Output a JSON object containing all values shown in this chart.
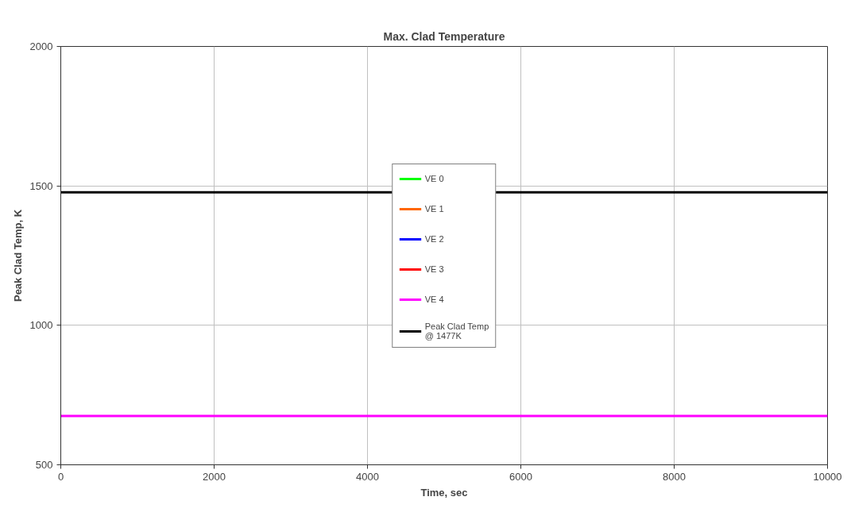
{
  "chart_data": {
    "type": "line",
    "title": "Max. Clad Temperature",
    "xlabel": "Time, sec",
    "ylabel": "Peak Clad Temp, K",
    "x": [
      0,
      10000
    ],
    "series": [
      {
        "name": "VE 0",
        "color": "#00ff00",
        "values": [
          null,
          null
        ]
      },
      {
        "name": "VE 1",
        "color": "#ff6600",
        "values": [
          null,
          null
        ]
      },
      {
        "name": "VE 2",
        "color": "#0000ff",
        "values": [
          null,
          null
        ]
      },
      {
        "name": "VE 3",
        "color": "#ff0000",
        "values": [
          null,
          null
        ]
      },
      {
        "name": "VE 4",
        "color": "#ff00ff",
        "values": [
          675,
          675
        ]
      },
      {
        "name": "Peak Clad Temp\n@ 1477K",
        "color": "#000000",
        "values": [
          1477,
          1477
        ]
      }
    ],
    "xlim": [
      0,
      10000
    ],
    "xticks": [
      0,
      2000,
      4000,
      6000,
      8000,
      10000
    ],
    "ylim": [
      500,
      2000
    ],
    "yticks": [
      500,
      1000,
      1500,
      2000
    ],
    "grid": true,
    "legend": "center",
    "marker": "none",
    "line_style": "solid"
  }
}
